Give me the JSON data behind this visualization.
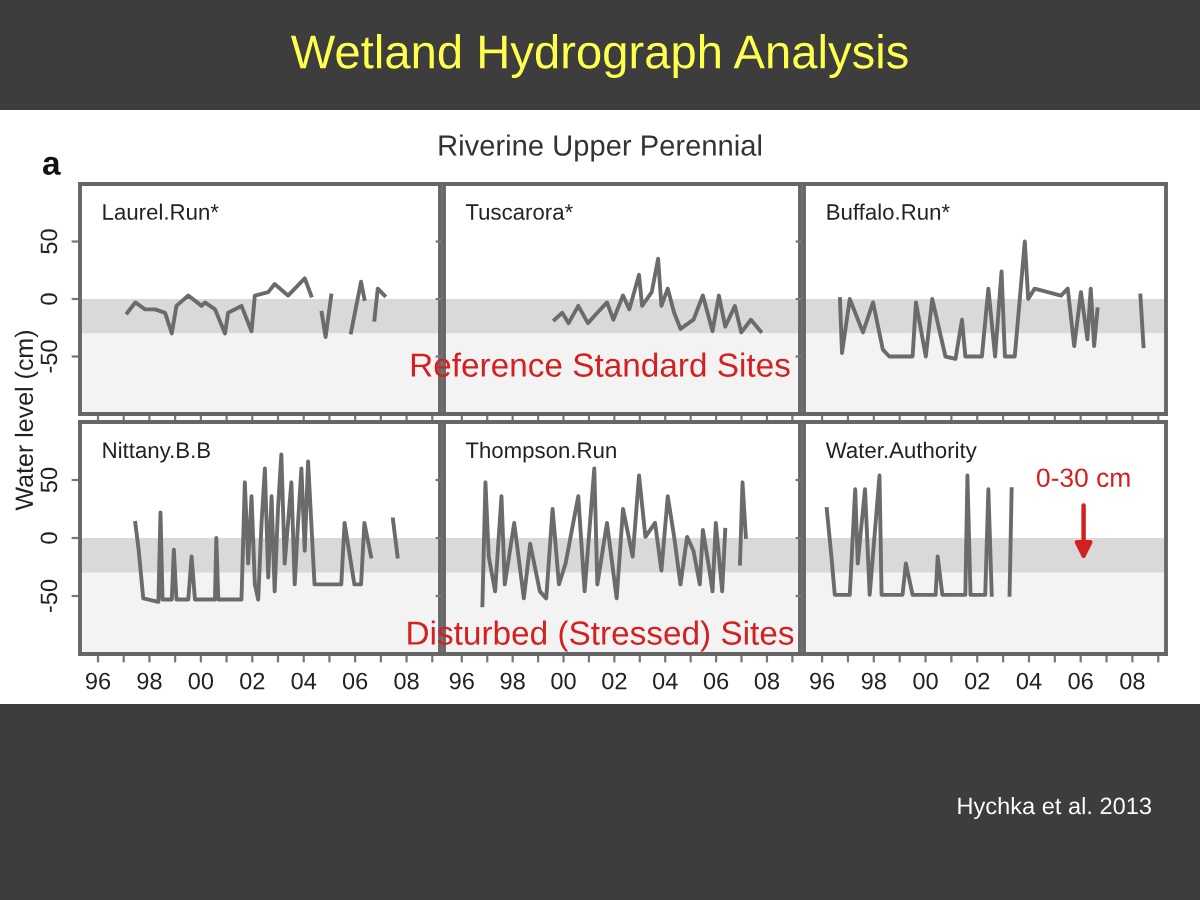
{
  "chart_data": [
    {
      "type": "line",
      "title": "Laurel.Run*",
      "ylabel": "Water level (cm)",
      "color": "#6b6b6b",
      "tick_labels": "y",
      "annotations": [
        "Wetland Hydrograph Analysis",
        "Riverine Upper Perennial",
        "a",
        "Hychka et al. 2013"
      ],
      "x": [
        1997.14,
        1997.45,
        1997.83,
        1998.22,
        1998.61,
        1998.87,
        1999.05,
        1999.51,
        2000.03,
        2000.16,
        2000.55,
        2000.94,
        2001.06,
        2001.58,
        2001.97,
        2002.1,
        2002.62,
        2002.87,
        2003.39,
        2004.04,
        2004.29,
        2004.5,
        2004.7,
        2004.85,
        2005.07,
        2005.5,
        2005.84,
        2006.23,
        2006.36,
        2006.5,
        2006.75,
        2006.88,
        2007.14
      ],
      "values": [
        -12,
        -3,
        -9,
        -9,
        -12,
        -30,
        -6,
        3,
        -6,
        -3,
        -9,
        -30,
        -12,
        -6,
        -28,
        3,
        6,
        13,
        3,
        18,
        3,
        null,
        -12,
        -33,
        3,
        null,
        -29,
        15,
        0,
        null,
        -18,
        9,
        3
      ],
      "xlim": [
        1995.3,
        2009.3
      ],
      "ylim": [
        -100,
        100
      ],
      "yticks": [
        -50,
        0,
        50
      ],
      "xticks": [
        {
          "value": 1996,
          "label": null
        },
        {
          "value": 1997,
          "label": null
        },
        {
          "value": 1998,
          "label": null
        },
        {
          "value": 1999,
          "label": null
        },
        {
          "value": 2000,
          "label": null
        },
        {
          "value": 2001,
          "label": null
        },
        {
          "value": 2002,
          "label": null
        },
        {
          "value": 2003,
          "label": null
        },
        {
          "value": 2004,
          "label": null
        },
        {
          "value": 2005,
          "label": null
        },
        {
          "value": 2006,
          "label": null
        },
        {
          "value": 2007,
          "label": null
        },
        {
          "value": 2008,
          "label": null
        },
        {
          "value": 2009,
          "label": null
        }
      ],
      "bands": [
        {
          "axis": "y",
          "from": -30,
          "to": 0,
          "color": "#d9d9d9"
        },
        {
          "axis": "y",
          "from": -100,
          "to": -30,
          "color": "#f3f3f3"
        }
      ]
    },
    {
      "type": "line",
      "title": "Tuscarora*",
      "color": "#6b6b6b",
      "tick_labels": false,
      "annotations": [
        "Reference Standard Sites"
      ],
      "x": [
        1999.65,
        1999.95,
        2000.2,
        2000.58,
        2000.96,
        2001.33,
        2001.71,
        2001.96,
        2002.34,
        2002.59,
        2002.97,
        2003.09,
        2003.47,
        2003.72,
        2003.85,
        2004.1,
        2004.35,
        2004.6,
        2005.11,
        2005.48,
        2005.86,
        2006.11,
        2006.36,
        2006.74,
        2006.99,
        2007.37,
        2007.75
      ],
      "values": [
        -18,
        -12,
        -21,
        -6,
        -21,
        -12,
        -3,
        -18,
        3,
        -9,
        21,
        -6,
        6,
        35,
        -6,
        9,
        -12,
        -26,
        -18,
        3,
        -28,
        3,
        -24,
        -6,
        -29,
        -18,
        -28
      ],
      "xlim": [
        1995.3,
        2009.3
      ],
      "ylim": [
        -100,
        100
      ],
      "yticks": [
        {
          "value": -50,
          "label": null
        },
        {
          "value": 0,
          "label": null
        },
        {
          "value": 50,
          "label": null
        }
      ],
      "xticks": [
        {
          "value": 1996,
          "label": null
        },
        {
          "value": 1997,
          "label": null
        },
        {
          "value": 1998,
          "label": null
        },
        {
          "value": 1999,
          "label": null
        },
        {
          "value": 2000,
          "label": null
        },
        {
          "value": 2001,
          "label": null
        },
        {
          "value": 2002,
          "label": null
        },
        {
          "value": 2003,
          "label": null
        },
        {
          "value": 2004,
          "label": null
        },
        {
          "value": 2005,
          "label": null
        },
        {
          "value": 2006,
          "label": null
        },
        {
          "value": 2007,
          "label": null
        },
        {
          "value": 2008,
          "label": null
        },
        {
          "value": 2009,
          "label": null
        }
      ],
      "bands": [
        {
          "axis": "y",
          "from": -30,
          "to": 0,
          "color": "#d9d9d9"
        },
        {
          "axis": "y",
          "from": -100,
          "to": -30,
          "color": "#f3f3f3"
        }
      ]
    },
    {
      "type": "line",
      "title": "Buffalo.Run*",
      "color": "#6b6b6b",
      "tick_labels": false,
      "x": [
        1996.69,
        1996.77,
        1997.07,
        1997.58,
        1997.97,
        1998.35,
        1998.6,
        1999.5,
        1999.63,
        2000.01,
        2000.26,
        2000.77,
        2001.16,
        2001.41,
        2001.54,
        2002.18,
        2002.43,
        2002.69,
        2002.94,
        2003.07,
        2003.45,
        2003.84,
        2003.97,
        2004.22,
        2004.73,
        2005.24,
        2005.5,
        2005.75,
        2006.01,
        2006.26,
        2006.39,
        2006.52,
        2006.65,
        2007.5,
        2008.31,
        2008.43
      ],
      "values": [
        0,
        -47,
        0,
        -29,
        -3,
        -44,
        -50,
        -50,
        -3,
        -50,
        0,
        -50,
        -52,
        -18,
        -50,
        -50,
        9,
        -50,
        24,
        -50,
        -50,
        50,
        0,
        9,
        6,
        3,
        9,
        -41,
        6,
        -35,
        9,
        -41,
        -9,
        null,
        3,
        -41
      ],
      "xlim": [
        1995.3,
        2009.3
      ],
      "ylim": [
        -100,
        100
      ],
      "yticks": [
        {
          "value": -50,
          "label": null
        },
        {
          "value": 0,
          "label": null
        },
        {
          "value": 50,
          "label": null
        }
      ],
      "xticks": [
        {
          "value": 1996,
          "label": null
        },
        {
          "value": 1997,
          "label": null
        },
        {
          "value": 1998,
          "label": null
        },
        {
          "value": 1999,
          "label": null
        },
        {
          "value": 2000,
          "label": null
        },
        {
          "value": 2001,
          "label": null
        },
        {
          "value": 2002,
          "label": null
        },
        {
          "value": 2003,
          "label": null
        },
        {
          "value": 2004,
          "label": null
        },
        {
          "value": 2005,
          "label": null
        },
        {
          "value": 2006,
          "label": null
        },
        {
          "value": 2007,
          "label": null
        },
        {
          "value": 2008,
          "label": null
        },
        {
          "value": 2009,
          "label": null
        }
      ],
      "bands": [
        {
          "axis": "y",
          "from": -30,
          "to": 0,
          "color": "#d9d9d9"
        },
        {
          "axis": "y",
          "from": -100,
          "to": -30,
          "color": "#f3f3f3"
        }
      ]
    },
    {
      "type": "line",
      "title": "Nittany.B.B",
      "color": "#6b6b6b",
      "x": [
        1997.45,
        1997.58,
        1997.76,
        1998.35,
        1998.43,
        1998.51,
        1998.87,
        1998.95,
        1999.05,
        1999.51,
        1999.64,
        1999.77,
        2000.55,
        2000.6,
        2000.68,
        2001.58,
        2001.71,
        2001.84,
        2001.97,
        2002.1,
        2002.23,
        2002.36,
        2002.49,
        2002.62,
        2002.75,
        2002.87,
        2003.0,
        2003.13,
        2003.26,
        2003.52,
        2003.65,
        2003.78,
        2003.91,
        2004.04,
        2004.17,
        2004.42,
        2005.46,
        2005.59,
        2005.97,
        2006.23,
        2006.36,
        2006.62,
        2007.0,
        2007.47,
        2007.65
      ],
      "values": [
        13,
        -10,
        -52,
        -55,
        22,
        -53,
        -53,
        -10,
        -53,
        -53,
        -16,
        -53,
        -53,
        0,
        -53,
        -53,
        48,
        -22,
        36,
        -40,
        -53,
        13,
        60,
        -34,
        36,
        -46,
        25,
        72,
        -22,
        48,
        -40,
        13,
        60,
        -11,
        66,
        -40,
        -40,
        13,
        -40,
        -40,
        13,
        -16,
        null,
        16,
        -16
      ],
      "xlim": [
        1995.3,
        2009.3
      ],
      "ylim": [
        -100,
        100
      ],
      "yticks": [
        -50,
        0,
        50
      ],
      "xticks": [
        {
          "value": 1996,
          "label": "96"
        },
        {
          "value": 1997,
          "label": null
        },
        {
          "value": 1998,
          "label": "98"
        },
        {
          "value": 1999,
          "label": null
        },
        {
          "value": 2000,
          "label": "00"
        },
        {
          "value": 2001,
          "label": null
        },
        {
          "value": 2002,
          "label": "02"
        },
        {
          "value": 2003,
          "label": null
        },
        {
          "value": 2004,
          "label": "04"
        },
        {
          "value": 2005,
          "label": null
        },
        {
          "value": 2006,
          "label": "06"
        },
        {
          "value": 2007,
          "label": null
        },
        {
          "value": 2008,
          "label": "08"
        },
        {
          "value": 2009,
          "label": null
        }
      ],
      "bands": [
        {
          "axis": "y",
          "from": -30,
          "to": 0,
          "color": "#d9d9d9"
        },
        {
          "axis": "y",
          "from": -100,
          "to": -30,
          "color": "#f3f3f3"
        }
      ]
    },
    {
      "type": "line",
      "title": "Thompson.Run",
      "color": "#6b6b6b",
      "tick_labels": "x",
      "annotations": [
        "Disturbed (Stressed) Sites"
      ],
      "x": [
        1996.81,
        1996.93,
        1997.06,
        1997.31,
        1997.56,
        1997.69,
        1998.06,
        1998.44,
        1998.69,
        1999.07,
        1999.32,
        1999.57,
        1999.82,
        2000.08,
        2000.58,
        2000.83,
        2001.21,
        2001.33,
        2001.71,
        2002.09,
        2002.34,
        2002.72,
        2002.97,
        2003.22,
        2003.6,
        2003.85,
        2004.1,
        2004.35,
        2004.6,
        2004.86,
        2005.11,
        2005.36,
        2005.48,
        2005.74,
        2005.86,
        2005.99,
        2006.24,
        2006.36,
        2006.6,
        2006.94,
        2007.04,
        2007.17
      ],
      "values": [
        -58,
        48,
        -16,
        -46,
        36,
        -40,
        13,
        -52,
        -5,
        -46,
        -52,
        25,
        -40,
        -22,
        36,
        -46,
        60,
        -40,
        13,
        -52,
        25,
        -16,
        54,
        1,
        13,
        -28,
        36,
        1,
        -40,
        1,
        -11,
        -40,
        7,
        -28,
        -46,
        13,
        -46,
        7,
        null,
        -22,
        48,
        1
      ],
      "xlim": [
        1995.3,
        2009.3
      ],
      "ylim": [
        -100,
        100
      ],
      "yticks": [
        -50,
        0,
        50
      ],
      "xticks": [
        {
          "value": 1996,
          "label": "96"
        },
        {
          "value": 1997,
          "label": null
        },
        {
          "value": 1998,
          "label": "98"
        },
        {
          "value": 1999,
          "label": null
        },
        {
          "value": 2000,
          "label": "00"
        },
        {
          "value": 2001,
          "label": null
        },
        {
          "value": 2002,
          "label": "02"
        },
        {
          "value": 2003,
          "label": null
        },
        {
          "value": 2004,
          "label": "04"
        },
        {
          "value": 2005,
          "label": null
        },
        {
          "value": 2006,
          "label": "06"
        },
        {
          "value": 2007,
          "label": null
        },
        {
          "value": 2008,
          "label": "08"
        },
        {
          "value": 2009,
          "label": null
        }
      ],
      "bands": [
        {
          "axis": "y",
          "from": -30,
          "to": 0,
          "color": "#d9d9d9"
        },
        {
          "axis": "y",
          "from": -100,
          "to": -30,
          "color": "#f3f3f3"
        }
      ]
    },
    {
      "type": "line",
      "title": "Water.Authority",
      "color": "#6b6b6b",
      "tick_labels": "x",
      "annotations": [
        "0-30 cm"
      ],
      "x": [
        1996.18,
        1996.36,
        1996.49,
        1997.07,
        1997.28,
        1997.38,
        1997.53,
        1997.66,
        1997.84,
        1998.22,
        1998.3,
        1999.11,
        1999.24,
        1999.5,
        2000.39,
        2000.47,
        2000.65,
        2001.54,
        2001.62,
        2001.74,
        2002.31,
        2002.43,
        2002.56,
        2002.9,
        2003.25,
        2003.33
      ],
      "values": [
        25,
        -16,
        -49,
        -49,
        42,
        -22,
        13,
        42,
        -49,
        54,
        -49,
        -49,
        -22,
        -49,
        -49,
        -16,
        -49,
        -49,
        54,
        -49,
        -49,
        42,
        -49,
        null,
        -49,
        42
      ],
      "xlim": [
        1995.3,
        2009.3
      ],
      "ylim": [
        -100,
        100
      ],
      "yticks": [
        -50,
        0,
        50
      ],
      "xticks": [
        {
          "value": 1996,
          "label": "96"
        },
        {
          "value": 1997,
          "label": null
        },
        {
          "value": 1998,
          "label": "98"
        },
        {
          "value": 1999,
          "label": null
        },
        {
          "value": 2000,
          "label": "00"
        },
        {
          "value": 2001,
          "label": null
        },
        {
          "value": 2002,
          "label": "02"
        },
        {
          "value": 2003,
          "label": null
        },
        {
          "value": 2004,
          "label": "04"
        },
        {
          "value": 2005,
          "label": null
        },
        {
          "value": 2006,
          "label": "06"
        },
        {
          "value": 2007,
          "label": null
        },
        {
          "value": 2008,
          "label": "08"
        },
        {
          "value": 2009,
          "label": null
        }
      ],
      "bands": [
        {
          "axis": "y",
          "from": -30,
          "to": 0,
          "color": "#d9d9d9"
        },
        {
          "axis": "y",
          "from": -100,
          "to": -30,
          "color": "#f3f3f3"
        }
      ]
    }
  ]
}
